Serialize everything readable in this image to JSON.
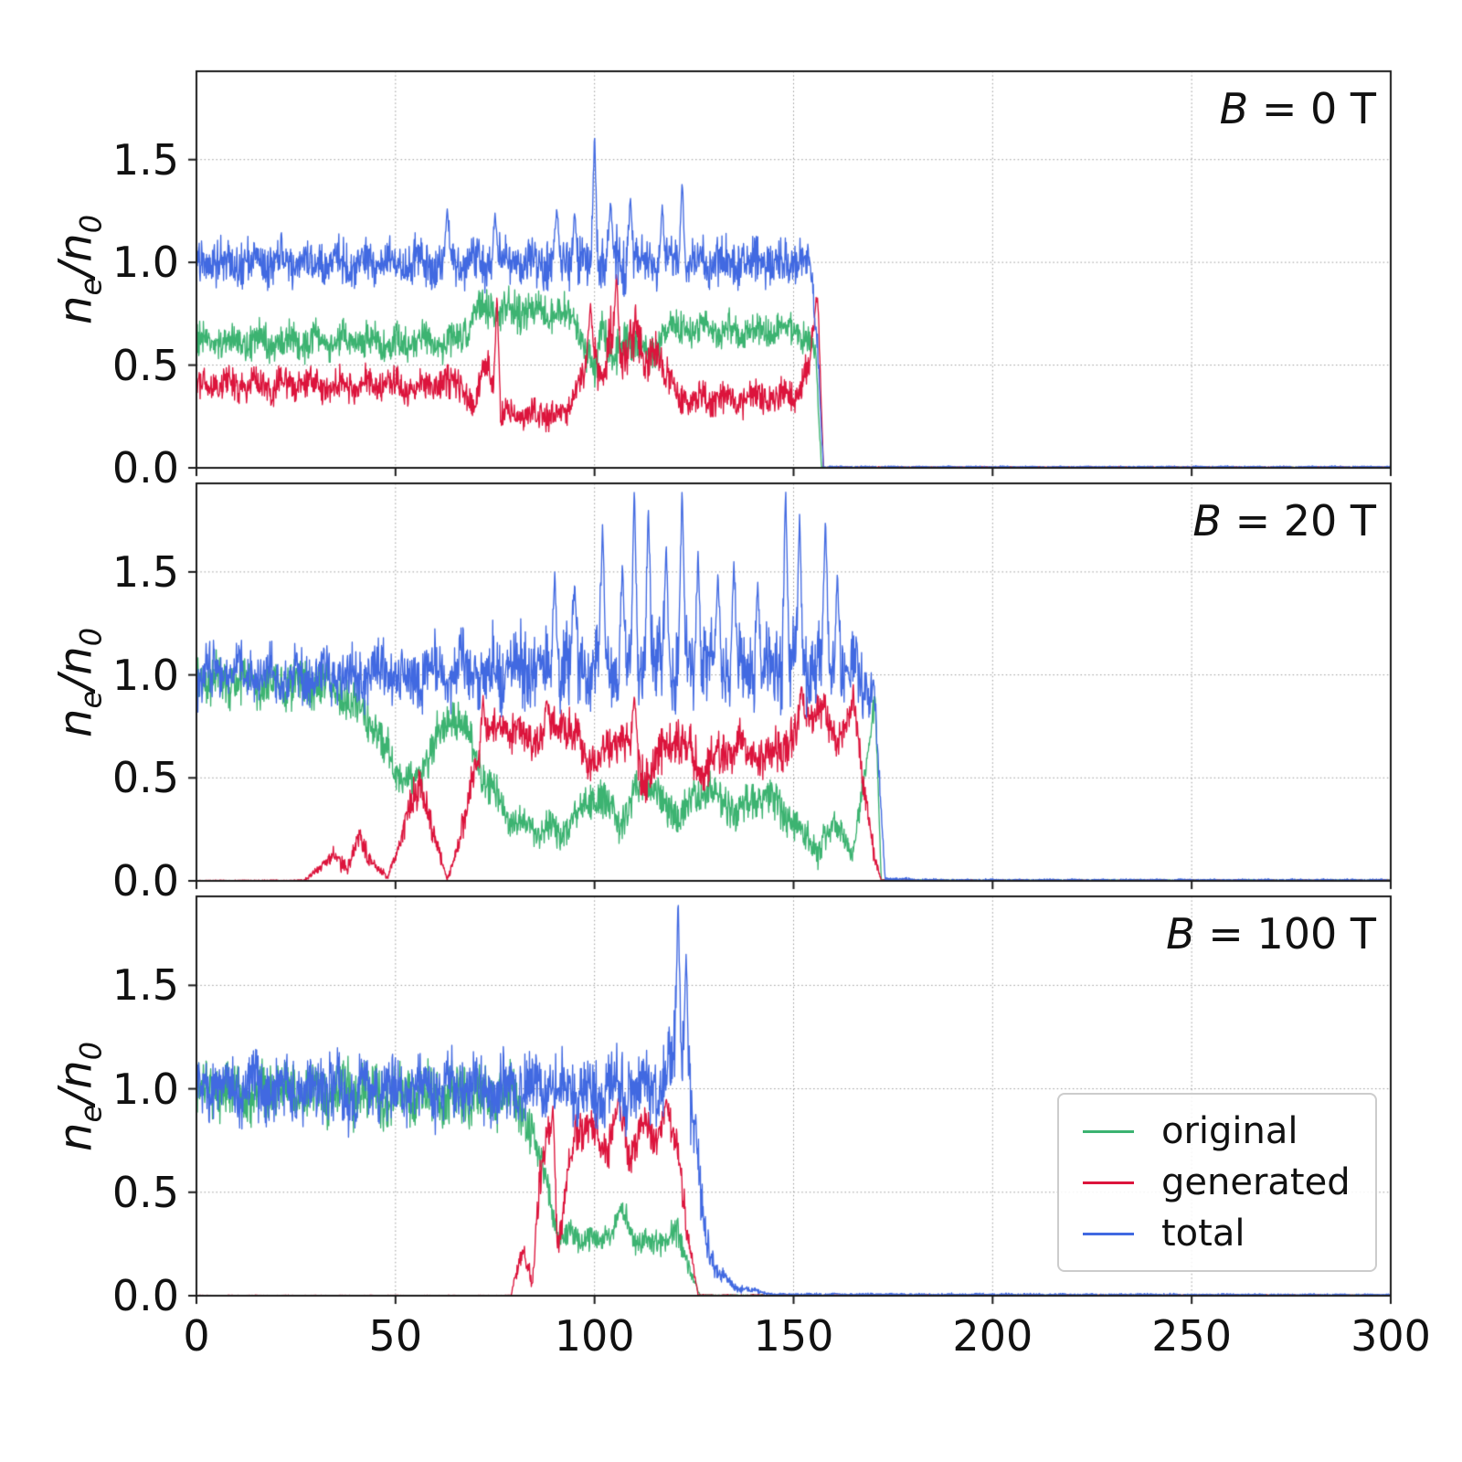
{
  "figure": {
    "ylabel": {
      "n1": "n",
      "sub1": "e",
      "mid": "/n",
      "sub2": "0"
    },
    "x_tick_labels": [
      "0",
      "50",
      "100",
      "150",
      "200",
      "250",
      "300"
    ],
    "y_tick_labels": [
      "0.0",
      "0.5",
      "1.0",
      "1.5"
    ],
    "colors": {
      "original": "#3CB371",
      "generated": "#DC143C",
      "total": "#4169E1"
    },
    "legend": [
      "original",
      "generated",
      "total"
    ]
  },
  "chart_data": {
    "type": "line",
    "xlabel": "",
    "ylabel": "ne/n0",
    "xlim": [
      0,
      300
    ],
    "ylim": [
      0,
      1.93
    ],
    "x_ticks": [
      0,
      50,
      100,
      150,
      200,
      250,
      300
    ],
    "y_ticks": [
      0,
      0.5,
      1.0,
      1.5
    ],
    "grid": true,
    "legend_position": "lower right of bottom panel",
    "panels": [
      {
        "label_var": "B",
        "label_rest": " = 0 T",
        "series": [
          {
            "name": "original",
            "x": [
              0,
              66,
              70,
              94,
              97,
              100,
              102,
              105,
              109,
              114,
              117,
              152,
              155.5,
              157,
              300
            ],
            "mean": [
              0.61,
              0.61,
              0.76,
              0.76,
              0.62,
              0.45,
              0.72,
              0.5,
              0.66,
              0.52,
              0.67,
              0.67,
              0.55,
              0.002,
              0.002
            ],
            "noise": [
              0.055,
              0.055,
              0.06,
              0.06,
              0.06,
              0.07,
              0.07,
              0.07,
              0.07,
              0.06,
              0.05,
              0.05,
              0.04,
              0.002,
              0.002
            ],
            "spikes": []
          },
          {
            "name": "generated",
            "x": [
              0,
              66,
              70,
              73,
              76,
              93,
              96,
              99,
              102,
              104,
              107,
              110,
              113,
              116,
              119,
              122,
              150,
              154,
              156,
              157.5,
              300
            ],
            "mean": [
              0.4,
              0.4,
              0.3,
              0.52,
              0.26,
              0.26,
              0.44,
              0.55,
              0.45,
              0.66,
              0.48,
              0.7,
              0.48,
              0.6,
              0.38,
              0.34,
              0.34,
              0.5,
              0.85,
              0.003,
              0.003
            ],
            "noise": [
              0.05,
              0.05,
              0.05,
              0.06,
              0.04,
              0.04,
              0.06,
              0.07,
              0.07,
              0.08,
              0.07,
              0.08,
              0.07,
              0.07,
              0.06,
              0.05,
              0.05,
              0.05,
              0.04,
              0.002,
              0.002
            ],
            "spikes": [
              [
                75.5,
                0.85
              ],
              [
                99,
                0.8
              ],
              [
                105.5,
                0.95
              ]
            ]
          },
          {
            "name": "total",
            "x": [
              0,
              93,
              99,
              104,
              110,
              154,
              156,
              157.5,
              300
            ],
            "mean": [
              1.0,
              1.0,
              0.98,
              1.0,
              1.0,
              1.0,
              0.6,
              0.004,
              0.004
            ],
            "noise": [
              0.07,
              0.07,
              0.12,
              0.1,
              0.07,
              0.07,
              0.05,
              0.003,
              0.003
            ],
            "spikes": [
              [
                63,
                1.26
              ],
              [
                75,
                1.24
              ],
              [
                90.5,
                1.27
              ],
              [
                95,
                1.25
              ],
              [
                100,
                1.63
              ],
              [
                104,
                1.3
              ],
              [
                109,
                1.33
              ],
              [
                117,
                1.28
              ],
              [
                122,
                1.4
              ]
            ]
          }
        ]
      },
      {
        "label_var": "B",
        "label_rest": " = 20 T",
        "series": [
          {
            "name": "original",
            "x": [
              0,
              33,
              42,
              50,
              55,
              60,
              65,
              70,
              75,
              80,
              92,
              100,
              107,
              113,
              120,
              128,
              136,
              143,
              150,
              156,
              161,
              165,
              168,
              170.5,
              172,
              300
            ],
            "mean": [
              0.97,
              0.95,
              0.82,
              0.55,
              0.45,
              0.7,
              0.82,
              0.62,
              0.4,
              0.27,
              0.24,
              0.42,
              0.3,
              0.5,
              0.3,
              0.45,
              0.33,
              0.42,
              0.28,
              0.15,
              0.3,
              0.12,
              0.55,
              0.9,
              0.003,
              0.003
            ],
            "noise": [
              0.07,
              0.07,
              0.06,
              0.06,
              0.06,
              0.06,
              0.06,
              0.06,
              0.06,
              0.05,
              0.05,
              0.06,
              0.06,
              0.06,
              0.06,
              0.06,
              0.06,
              0.06,
              0.06,
              0.05,
              0.05,
              0.04,
              0.05,
              0.04,
              0.002,
              0.002
            ],
            "spikes": []
          },
          {
            "name": "generated",
            "x": [
              0,
              27,
              32,
              35,
              38,
              41,
              44,
              48,
              53,
              56.5,
              60,
              63,
              67,
              71,
              76,
              85,
              92,
              100,
              107,
              113,
              120,
              128,
              136,
              143,
              150,
              156,
              161,
              165,
              168,
              170.5,
              172,
              300
            ],
            "mean": [
              0.002,
              0.002,
              0.08,
              0.13,
              0.06,
              0.22,
              0.1,
              0.01,
              0.3,
              0.5,
              0.18,
              0.01,
              0.25,
              0.65,
              0.75,
              0.68,
              0.78,
              0.58,
              0.72,
              0.5,
              0.7,
              0.55,
              0.67,
              0.58,
              0.72,
              0.85,
              0.68,
              0.85,
              0.45,
              0.1,
              0.002,
              0.002
            ],
            "noise": [
              0.001,
              0.002,
              0.02,
              0.03,
              0.02,
              0.04,
              0.03,
              0.005,
              0.05,
              0.06,
              0.04,
              0.005,
              0.05,
              0.06,
              0.06,
              0.06,
              0.06,
              0.07,
              0.07,
              0.07,
              0.07,
              0.07,
              0.07,
              0.07,
              0.07,
              0.06,
              0.06,
              0.05,
              0.06,
              0.03,
              0.002,
              0.002
            ],
            "spikes": [
              [
                72,
                0.9
              ],
              [
                88,
                0.88
              ],
              [
                110,
                0.9
              ],
              [
                152,
                0.95
              ]
            ]
          },
          {
            "name": "total",
            "x": [
              0,
              55,
              85,
              160,
              166,
              170,
              171.5,
              173,
              186,
              300
            ],
            "mean": [
              1.0,
              1.0,
              1.04,
              1.04,
              1.0,
              0.95,
              0.5,
              0.01,
              0.004,
              0.004
            ],
            "noise": [
              0.08,
              0.09,
              0.12,
              0.12,
              0.1,
              0.09,
              0.05,
              0.006,
              0.003,
              0.003
            ],
            "spikes": [
              [
                90,
                1.5
              ],
              [
                95,
                1.45
              ],
              [
                102,
                1.73
              ],
              [
                107,
                1.55
              ],
              [
                110,
                1.92
              ],
              [
                113.5,
                1.83
              ],
              [
                118,
                1.65
              ],
              [
                122,
                1.92
              ],
              [
                126,
                1.6
              ],
              [
                131,
                1.5
              ],
              [
                135,
                1.55
              ],
              [
                141,
                1.45
              ],
              [
                148,
                1.92
              ],
              [
                151.5,
                1.78
              ],
              [
                158,
                1.77
              ],
              [
                161,
                1.5
              ]
            ]
          }
        ]
      },
      {
        "label_var": "B",
        "label_rest": " = 100 T",
        "series": [
          {
            "name": "original",
            "x": [
              0,
              80,
              84,
              88,
              91,
              95,
              100,
              104,
              107,
              110,
              114,
              118,
              121,
              124,
              126.5,
              300
            ],
            "mean": [
              0.99,
              0.97,
              0.8,
              0.55,
              0.27,
              0.3,
              0.26,
              0.3,
              0.4,
              0.28,
              0.24,
              0.28,
              0.3,
              0.12,
              0.002,
              0.002
            ],
            "noise": [
              0.09,
              0.09,
              0.07,
              0.05,
              0.04,
              0.04,
              0.04,
              0.04,
              0.04,
              0.04,
              0.04,
              0.04,
              0.05,
              0.03,
              0.002,
              0.002
            ],
            "spikes": []
          },
          {
            "name": "generated",
            "x": [
              0,
              79,
              82,
              84.5,
              86,
              88.5,
              91,
              93,
              95,
              99,
              103,
              106,
              109,
              112,
              115,
              118,
              121,
              123.5,
              126,
              300
            ],
            "mean": [
              0.001,
              0.001,
              0.25,
              0.05,
              0.5,
              0.85,
              0.2,
              0.55,
              0.8,
              0.82,
              0.7,
              0.88,
              0.68,
              0.85,
              0.75,
              0.88,
              0.7,
              0.3,
              0.002,
              0.002
            ],
            "noise": [
              0.001,
              0.001,
              0.05,
              0.03,
              0.08,
              0.06,
              0.06,
              0.06,
              0.06,
              0.06,
              0.06,
              0.06,
              0.06,
              0.06,
              0.06,
              0.06,
              0.06,
              0.04,
              0.002,
              0.002
            ],
            "spikes": [
              [
                89.5,
                0.93
              ],
              [
                106,
                0.95
              ],
              [
                118,
                0.95
              ]
            ]
          },
          {
            "name": "total",
            "x": [
              0,
              114,
              118,
              120,
              122,
              124.5,
              126.5,
              128.5,
              131,
              136,
              145,
              300
            ],
            "mean": [
              1.0,
              1.0,
              1.05,
              1.15,
              1.1,
              0.9,
              0.5,
              0.25,
              0.1,
              0.04,
              0.006,
              0.004
            ],
            "noise": [
              0.105,
              0.105,
              0.12,
              0.15,
              0.15,
              0.15,
              0.1,
              0.06,
              0.03,
              0.012,
              0.004,
              0.003
            ],
            "spikes": [
              [
                121,
                1.92
              ],
              [
                123,
                1.65
              ]
            ]
          }
        ]
      }
    ]
  }
}
